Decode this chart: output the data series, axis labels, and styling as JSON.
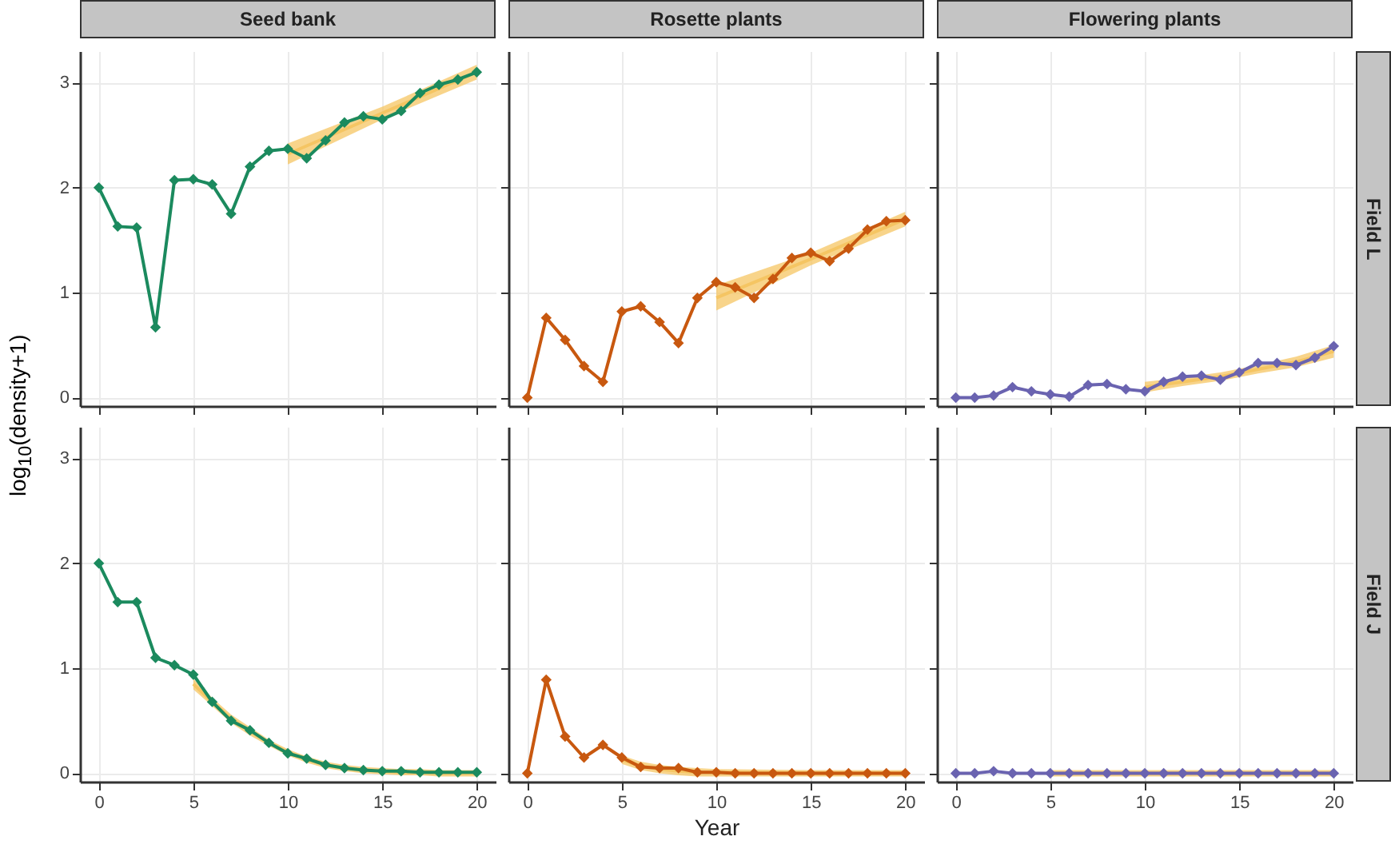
{
  "chart_data": [
    {
      "type": "line",
      "title": "Seed bank",
      "ylabel": "log$_{10}$(density+1)",
      "tick_labels": "y",
      "x": [
        0,
        1,
        2,
        3,
        4,
        5,
        6,
        7,
        8,
        9,
        10,
        11,
        12,
        13,
        14,
        15,
        16,
        17,
        18,
        19,
        20
      ],
      "xlim": [
        -1,
        21
      ],
      "xticks": [
        0,
        5,
        10,
        15,
        20
      ],
      "ylim": [
        -0.08,
        3.3
      ],
      "yticks": [
        0,
        1,
        2,
        3
      ],
      "grid": true,
      "marker": "diamond",
      "series": [
        {
          "color": "#f5c563",
          "marker": "none",
          "x": [
            10,
            15,
            20
          ],
          "values": [
            2.32,
            2.71,
            3.1
          ],
          "lower": [
            2.22,
            2.65,
            3.03
          ],
          "upper": [
            2.42,
            2.77,
            3.17
          ]
        },
        {
          "color": "#1b8a5e",
          "values": [
            2.0,
            1.63,
            1.62,
            0.67,
            2.07,
            2.08,
            2.03,
            1.75,
            2.2,
            2.35,
            2.37,
            2.28,
            2.45,
            2.62,
            2.68,
            2.65,
            2.73,
            2.9,
            2.98,
            3.03,
            3.1
          ]
        }
      ]
    },
    {
      "type": "line",
      "title": "Rosette plants",
      "tick_labels": false,
      "x": [
        0,
        1,
        2,
        3,
        4,
        5,
        6,
        7,
        8,
        9,
        10,
        11,
        12,
        13,
        14,
        15,
        16,
        17,
        18,
        19,
        20
      ],
      "xlim": [
        -1,
        21
      ],
      "xticks": [
        0,
        5,
        10,
        15,
        20
      ],
      "ylim": [
        -0.08,
        3.3
      ],
      "yticks": [
        0,
        1,
        2,
        3
      ],
      "grid": true,
      "marker": "diamond",
      "series": [
        {
          "color": "#f5c563",
          "marker": "none",
          "x": [
            10,
            15,
            20
          ],
          "values": [
            0.95,
            1.32,
            1.7
          ],
          "lower": [
            0.83,
            1.26,
            1.63
          ],
          "upper": [
            1.07,
            1.38,
            1.77
          ]
        },
        {
          "color": "#c8580f",
          "values": [
            0,
            0.76,
            0.55,
            0.3,
            0.15,
            0.82,
            0.87,
            0.72,
            0.52,
            0.95,
            1.1,
            1.05,
            0.95,
            1.13,
            1.33,
            1.38,
            1.3,
            1.42,
            1.6,
            1.68,
            1.69
          ]
        }
      ]
    },
    {
      "type": "line",
      "title": "Flowering plants",
      "annotations": [
        "Field L"
      ],
      "tick_labels": false,
      "x": [
        0,
        1,
        2,
        3,
        4,
        5,
        6,
        7,
        8,
        9,
        10,
        11,
        12,
        13,
        14,
        15,
        16,
        17,
        18,
        19,
        20
      ],
      "xlim": [
        -1,
        21
      ],
      "xticks": [
        0,
        5,
        10,
        15,
        20
      ],
      "ylim": [
        -0.08,
        3.3
      ],
      "yticks": [
        0,
        1,
        2,
        3
      ],
      "grid": true,
      "marker": "diamond",
      "series": [
        {
          "color": "#f5c563",
          "marker": "none",
          "x": [
            10,
            12,
            14,
            16,
            18,
            20
          ],
          "values": [
            0.1,
            0.15,
            0.2,
            0.27,
            0.34,
            0.44
          ],
          "lower": [
            0.05,
            0.11,
            0.16,
            0.23,
            0.29,
            0.38
          ],
          "upper": [
            0.15,
            0.19,
            0.24,
            0.31,
            0.39,
            0.5
          ]
        },
        {
          "color": "#6a63b0",
          "values": [
            0,
            0,
            0.02,
            0.1,
            0.06,
            0.03,
            0.01,
            0.12,
            0.13,
            0.08,
            0.06,
            0.15,
            0.2,
            0.21,
            0.17,
            0.24,
            0.33,
            0.33,
            0.31,
            0.38,
            0.49
          ]
        }
      ]
    },
    {
      "type": "line",
      "x": [
        0,
        1,
        2,
        3,
        4,
        5,
        6,
        7,
        8,
        9,
        10,
        11,
        12,
        13,
        14,
        15,
        16,
        17,
        18,
        19,
        20
      ],
      "xlim": [
        -1,
        21
      ],
      "xticks": [
        0,
        5,
        10,
        15,
        20
      ],
      "ylim": [
        -0.08,
        3.3
      ],
      "yticks": [
        0,
        1,
        2,
        3
      ],
      "grid": true,
      "marker": "diamond",
      "series": [
        {
          "color": "#f5c563",
          "marker": "none",
          "x": [
            5,
            6,
            7,
            8,
            9,
            10,
            11,
            12,
            13,
            14,
            15,
            16,
            17,
            18,
            19,
            20
          ],
          "values": [
            0.85,
            0.68,
            0.52,
            0.4,
            0.29,
            0.2,
            0.13,
            0.08,
            0.05,
            0.03,
            0.02,
            0.01,
            0.01,
            0,
            0,
            0
          ],
          "lower": [
            0.8,
            0.64,
            0.48,
            0.36,
            0.26,
            0.17,
            0.1,
            0.05,
            0.02,
            0,
            -0.01,
            -0.02,
            -0.02,
            -0.03,
            -0.03,
            -0.03
          ],
          "upper": [
            0.9,
            0.72,
            0.56,
            0.44,
            0.32,
            0.23,
            0.16,
            0.11,
            0.08,
            0.06,
            0.05,
            0.04,
            0.04,
            0.03,
            0.03,
            0.03
          ]
        },
        {
          "color": "#1b8a5e",
          "values": [
            2.0,
            1.63,
            1.63,
            1.1,
            1.03,
            0.94,
            0.68,
            0.5,
            0.41,
            0.29,
            0.19,
            0.14,
            0.08,
            0.05,
            0.03,
            0.02,
            0.02,
            0.01,
            0.01,
            0.01,
            0.01
          ]
        }
      ]
    },
    {
      "type": "line",
      "xlabel": "Year",
      "tick_labels": "x",
      "x": [
        0,
        1,
        2,
        3,
        4,
        5,
        6,
        7,
        8,
        9,
        10,
        11,
        12,
        13,
        14,
        15,
        16,
        17,
        18,
        19,
        20
      ],
      "xlim": [
        -1,
        21
      ],
      "xticks": [
        0,
        5,
        10,
        15,
        20
      ],
      "ylim": [
        -0.08,
        3.3
      ],
      "yticks": [
        0,
        1,
        2,
        3
      ],
      "grid": true,
      "marker": "diamond",
      "series": [
        {
          "color": "#f5c563",
          "marker": "none",
          "x": [
            5,
            6,
            7,
            8,
            9,
            10,
            15,
            20
          ],
          "values": [
            0.13,
            0.07,
            0.04,
            0.02,
            0.01,
            0.01,
            0,
            0
          ],
          "lower": [
            0.09,
            0.03,
            0,
            -0.02,
            -0.03,
            -0.03,
            -0.03,
            -0.03
          ],
          "upper": [
            0.17,
            0.11,
            0.08,
            0.06,
            0.05,
            0.04,
            0.03,
            0.03
          ]
        },
        {
          "color": "#c8580f",
          "values": [
            0,
            0.89,
            0.35,
            0.15,
            0.27,
            0.15,
            0.06,
            0.05,
            0.05,
            0.01,
            0.01,
            0,
            0,
            0,
            0,
            0,
            0,
            0,
            0,
            0,
            0
          ]
        }
      ]
    },
    {
      "type": "line",
      "annotations": [
        "Field J"
      ],
      "tick_labels": "x",
      "x": [
        0,
        1,
        2,
        3,
        4,
        5,
        6,
        7,
        8,
        9,
        10,
        11,
        12,
        13,
        14,
        15,
        16,
        17,
        18,
        19,
        20
      ],
      "xlim": [
        -1,
        21
      ],
      "xticks": [
        0,
        5,
        10,
        15,
        20
      ],
      "ylim": [
        -0.08,
        3.3
      ],
      "yticks": [
        0,
        1,
        2,
        3
      ],
      "grid": true,
      "marker": "diamond",
      "series": [
        {
          "color": "#f5c563",
          "marker": "none",
          "x": [
            5,
            20
          ],
          "values": [
            0,
            0
          ],
          "lower": [
            -0.03,
            -0.03
          ],
          "upper": [
            0.03,
            0.03
          ]
        },
        {
          "color": "#6a63b0",
          "values": [
            0,
            0,
            0.02,
            0,
            0,
            0,
            0,
            0,
            0,
            0,
            0,
            0,
            0,
            0,
            0,
            0,
            0,
            0,
            0,
            0,
            0
          ]
        }
      ]
    }
  ]
}
